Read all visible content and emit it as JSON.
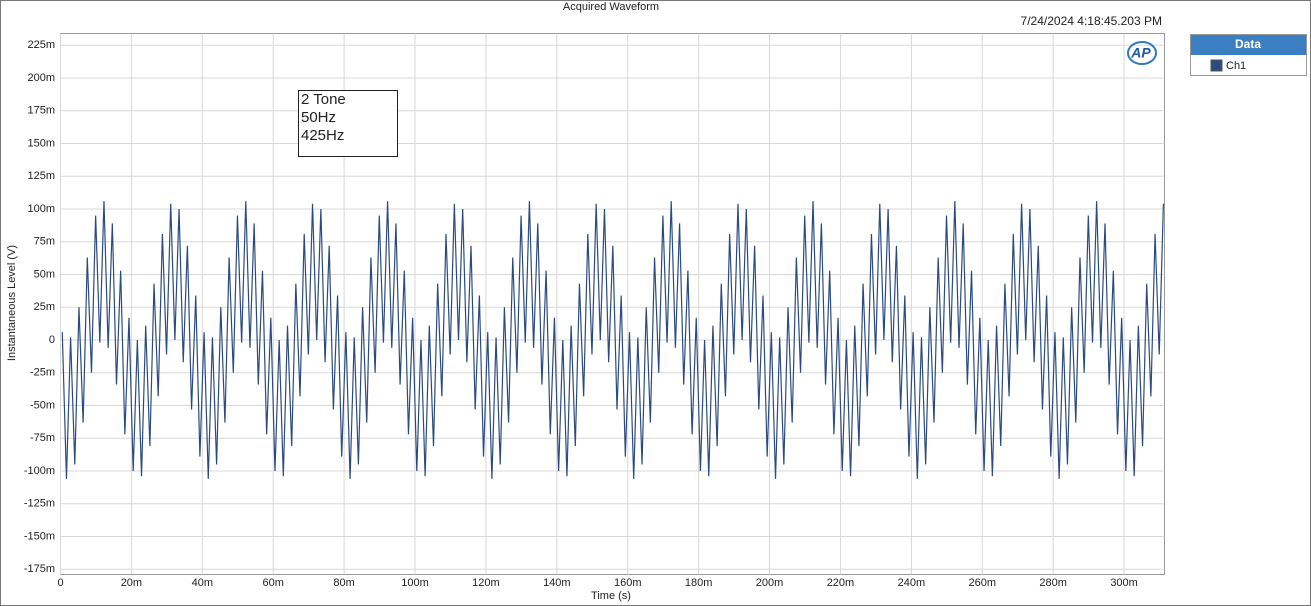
{
  "chart_data": {
    "type": "line",
    "title": "Acquired Waveform",
    "timestamp": "7/24/2024 4:18:45.203 PM",
    "xlabel": "Time (s)",
    "ylabel": "Instantaneous Level (V)",
    "annotation": [
      "2 Tone",
      "50Hz",
      "425Hz"
    ],
    "logo": "AP",
    "legend_title": "Data",
    "grid": true,
    "xlim": [
      0,
      0.3114
    ],
    "ylim": [
      -0.179,
      0.234
    ],
    "xticks": [
      {
        "value": 0,
        "label": "0"
      },
      {
        "value": 0.02,
        "label": "20m"
      },
      {
        "value": 0.04,
        "label": "40m"
      },
      {
        "value": 0.06,
        "label": "60m"
      },
      {
        "value": 0.08,
        "label": "80m"
      },
      {
        "value": 0.1,
        "label": "100m"
      },
      {
        "value": 0.12,
        "label": "120m"
      },
      {
        "value": 0.14,
        "label": "140m"
      },
      {
        "value": 0.16,
        "label": "160m"
      },
      {
        "value": 0.18,
        "label": "180m"
      },
      {
        "value": 0.2,
        "label": "200m"
      },
      {
        "value": 0.22,
        "label": "220m"
      },
      {
        "value": 0.24,
        "label": "240m"
      },
      {
        "value": 0.26,
        "label": "260m"
      },
      {
        "value": 0.28,
        "label": "280m"
      },
      {
        "value": 0.3,
        "label": "300m"
      }
    ],
    "yticks": [
      {
        "value": 0.225,
        "label": "225m"
      },
      {
        "value": 0.2,
        "label": "200m"
      },
      {
        "value": 0.175,
        "label": "175m"
      },
      {
        "value": 0.15,
        "label": "150m"
      },
      {
        "value": 0.125,
        "label": "125m"
      },
      {
        "value": 0.1,
        "label": "100m"
      },
      {
        "value": 0.075,
        "label": "75m"
      },
      {
        "value": 0.05,
        "label": "50m"
      },
      {
        "value": 0.025,
        "label": "25m"
      },
      0,
      {
        "value": -0.025,
        "label": "-25m"
      },
      {
        "value": -0.05,
        "label": "-50m"
      },
      {
        "value": -0.075,
        "label": "-75m"
      },
      {
        "value": -0.1,
        "label": "-100m"
      },
      {
        "value": -0.125,
        "label": "-125m"
      },
      {
        "value": -0.15,
        "label": "-150m"
      },
      {
        "value": -0.175,
        "label": "-175m"
      }
    ],
    "x": [
      0.0005,
      0.00168,
      0.00285,
      0.00403,
      0.00521,
      0.00638,
      0.00756,
      0.00874,
      0.00991,
      0.01109,
      0.01226,
      0.01344,
      0.01462,
      0.01579,
      0.01697,
      0.01815,
      0.01932,
      0.0205,
      0.02168,
      0.02285,
      0.02403,
      0.02521,
      0.02638,
      0.02756,
      0.02874,
      0.02991,
      0.03109,
      0.03226,
      0.03344,
      0.03462,
      0.03579,
      0.03697,
      0.03815,
      0.03932,
      0.0405,
      0.04168,
      0.04285,
      0.04403,
      0.04521,
      0.04638,
      0.04756,
      0.04874,
      0.04991,
      0.05109,
      0.05226,
      0.05344,
      0.05462,
      0.05579,
      0.05697,
      0.05815,
      0.05932,
      0.0605,
      0.06168,
      0.06285,
      0.06403,
      0.06521,
      0.06638,
      0.06756,
      0.06874,
      0.06991,
      0.07109,
      0.07226,
      0.07344,
      0.07462,
      0.07579,
      0.07697,
      0.07815,
      0.07932,
      0.0805,
      0.08168,
      0.08285,
      0.08403,
      0.08521,
      0.08638,
      0.08756,
      0.08874,
      0.08991,
      0.09109,
      0.09226,
      0.09344,
      0.09462,
      0.09579,
      0.09697,
      0.09815,
      0.09932,
      0.1005,
      0.10168,
      0.10285,
      0.10403,
      0.10521,
      0.10638,
      0.10756,
      0.10874,
      0.10991,
      0.11109,
      0.11226,
      0.11344,
      0.11462,
      0.11579,
      0.11697,
      0.11815,
      0.11932,
      0.1205,
      0.12168,
      0.12285,
      0.12403,
      0.12521,
      0.12638,
      0.12756,
      0.12874,
      0.12991,
      0.13109,
      0.13226,
      0.13344,
      0.13462,
      0.13579,
      0.13697,
      0.13815,
      0.13932,
      0.1405,
      0.14168,
      0.14285,
      0.14403,
      0.14521,
      0.14638,
      0.14756,
      0.14874,
      0.14991,
      0.15109,
      0.15226,
      0.15344,
      0.15462,
      0.15579,
      0.15697,
      0.15815,
      0.15932,
      0.1605,
      0.16168,
      0.16285,
      0.16403,
      0.16521,
      0.16638,
      0.16756,
      0.16874,
      0.16991,
      0.17109,
      0.17226,
      0.17344,
      0.17462,
      0.17579,
      0.17697,
      0.17815,
      0.17932,
      0.1805,
      0.18168,
      0.18285,
      0.18403,
      0.18521,
      0.18638,
      0.18756,
      0.18874,
      0.18991,
      0.19109,
      0.19226,
      0.19344,
      0.19462,
      0.19579,
      0.19697,
      0.19815,
      0.19932,
      0.2005,
      0.20168,
      0.20285,
      0.20403,
      0.20521,
      0.20638,
      0.20756,
      0.20874,
      0.20991,
      0.21109,
      0.21226,
      0.21344,
      0.21462,
      0.21579,
      0.21697,
      0.21815,
      0.21932,
      0.2205,
      0.22168,
      0.22285,
      0.22403,
      0.22521,
      0.22638,
      0.22756,
      0.22874,
      0.22991,
      0.23109,
      0.23226,
      0.23344,
      0.23462,
      0.23579,
      0.23697,
      0.23815,
      0.23932,
      0.2405,
      0.24168,
      0.24285,
      0.24403,
      0.24521,
      0.24638,
      0.24756,
      0.24874,
      0.24991,
      0.25109,
      0.25226,
      0.25344,
      0.25462,
      0.25579,
      0.25697,
      0.25815,
      0.25932,
      0.2605,
      0.26168,
      0.26285,
      0.26403,
      0.26521,
      0.26638,
      0.26756,
      0.26874,
      0.26991,
      0.27109,
      0.27226,
      0.27344,
      0.27462,
      0.27579,
      0.27697,
      0.27815,
      0.27932,
      0.2805,
      0.28168,
      0.28285,
      0.28403,
      0.28521,
      0.28638,
      0.28756,
      0.28874,
      0.28991,
      0.29109,
      0.29226,
      0.29344,
      0.29462,
      0.29579,
      0.29697,
      0.29815,
      0.29932,
      0.3005,
      0.30168,
      0.30285,
      0.30403,
      0.30521,
      0.30638,
      0.30756,
      0.30874,
      0.30991,
      0.31109
    ],
    "series": [
      {
        "name": "Ch1",
        "color": "#2b4b80",
        "values": [
          0.006,
          -0.106,
          0.002,
          -0.095,
          0.025,
          -0.063,
          0.063,
          -0.025,
          0.095,
          -0.002,
          0.106,
          -0.006,
          0.089,
          -0.034,
          0.053,
          -0.072,
          0.017,
          -0.1,
          0,
          -0.104,
          0.011,
          -0.081,
          0.043,
          -0.043,
          0.081,
          -0.011,
          0.104,
          0,
          0.1,
          -0.017,
          0.072,
          -0.053,
          0.034,
          -0.089,
          0.006,
          -0.106,
          0.002,
          -0.095,
          0.025,
          -0.063,
          0.063,
          -0.025,
          0.095,
          -0.002,
          0.106,
          -0.006,
          0.089,
          -0.034,
          0.053,
          -0.072,
          0.017,
          -0.1,
          0,
          -0.104,
          0.011,
          -0.081,
          0.043,
          -0.043,
          0.081,
          -0.011,
          0.104,
          0,
          0.1,
          -0.017,
          0.072,
          -0.053,
          0.034,
          -0.089,
          0.006,
          -0.106,
          0.002,
          -0.095,
          0.025,
          -0.063,
          0.063,
          -0.025,
          0.095,
          -0.002,
          0.106,
          -0.006,
          0.089,
          -0.034,
          0.053,
          -0.072,
          0.017,
          -0.1,
          0,
          -0.104,
          0.011,
          -0.081,
          0.043,
          -0.043,
          0.081,
          -0.011,
          0.104,
          0,
          0.1,
          -0.017,
          0.072,
          -0.053,
          0.034,
          -0.089,
          0.006,
          -0.106,
          0.002,
          -0.095,
          0.025,
          -0.063,
          0.063,
          -0.025,
          0.095,
          -0.002,
          0.106,
          -0.006,
          0.089,
          -0.034,
          0.053,
          -0.072,
          0.017,
          -0.1,
          0,
          -0.104,
          0.011,
          -0.081,
          0.043,
          -0.043,
          0.081,
          -0.011,
          0.104,
          0,
          0.1,
          -0.017,
          0.072,
          -0.053,
          0.034,
          -0.089,
          0.006,
          -0.106,
          0.002,
          -0.095,
          0.025,
          -0.063,
          0.063,
          -0.025,
          0.095,
          -0.002,
          0.106,
          -0.006,
          0.089,
          -0.034,
          0.053,
          -0.072,
          0.017,
          -0.1,
          0,
          -0.104,
          0.011,
          -0.081,
          0.043,
          -0.043,
          0.081,
          -0.011,
          0.104,
          0,
          0.1,
          -0.017,
          0.072,
          -0.053,
          0.034,
          -0.089,
          0.006,
          -0.106,
          0.002,
          -0.095,
          0.025,
          -0.063,
          0.063,
          -0.025,
          0.095,
          -0.002,
          0.106,
          -0.006,
          0.089,
          -0.034,
          0.053,
          -0.072,
          0.017,
          -0.1,
          0,
          -0.104,
          0.011,
          -0.081,
          0.043,
          -0.043,
          0.081,
          -0.011,
          0.104,
          0,
          0.1,
          -0.017,
          0.072,
          -0.053,
          0.034,
          -0.089,
          0.006,
          -0.106,
          0.002,
          -0.095,
          0.025,
          -0.063,
          0.063,
          -0.025,
          0.095,
          -0.002,
          0.106,
          -0.006,
          0.089,
          -0.034,
          0.053,
          -0.072,
          0.017,
          -0.1,
          0,
          -0.104,
          0.011,
          -0.081,
          0.043,
          -0.043,
          0.081,
          -0.011,
          0.104,
          0,
          0.1,
          -0.017,
          0.072,
          -0.053,
          0.034,
          -0.089,
          0.006,
          -0.106,
          0.002,
          -0.095,
          0.025,
          -0.063,
          0.063,
          -0.025,
          0.095,
          -0.002,
          0.106,
          -0.006,
          0.089,
          -0.034,
          0.053,
          -0.072,
          0.017,
          -0.1,
          0,
          -0.104,
          0.011,
          -0.081,
          0.043,
          -0.043,
          0.081,
          -0.011,
          0.104
        ]
      }
    ]
  }
}
